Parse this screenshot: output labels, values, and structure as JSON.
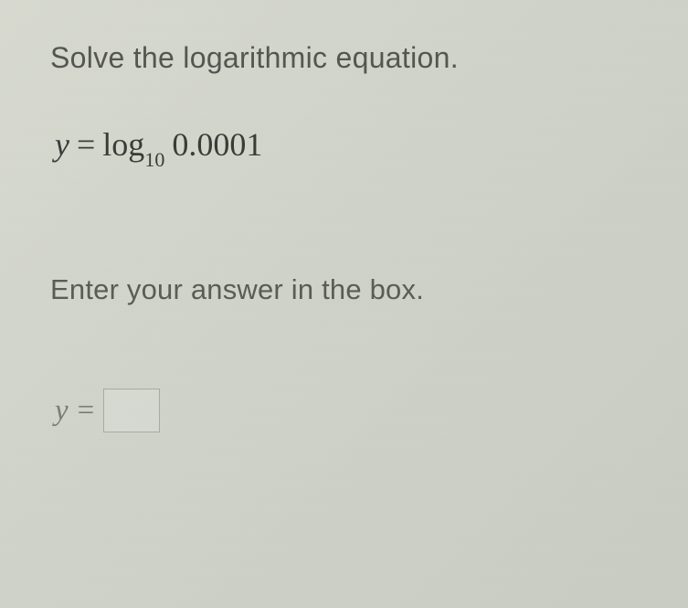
{
  "question": {
    "instruction": "Solve the logarithmic equation.",
    "equation": {
      "lhs_variable": "y",
      "equals": "=",
      "operator": "log",
      "base": "10",
      "argument": "0.0001"
    },
    "prompt": "Enter your answer in the box.",
    "answer": {
      "lhs_variable": "y",
      "equals": "=",
      "value": ""
    }
  },
  "style": {
    "background_gradient_start": "#d8dad0",
    "background_gradient_end": "#c8ccc2",
    "instruction_color": "#545750",
    "instruction_fontsize": 32,
    "equation_color": "#3a3c38",
    "equation_fontsize": 36,
    "equation_sub_fontsize": 22,
    "prompt_color": "#5a5d56",
    "prompt_fontsize": 31,
    "answer_label_color": "#7a7d76",
    "answer_label_fontsize": 33,
    "input_border_color": "#a8aba2",
    "input_width": 62,
    "input_height": 48
  }
}
